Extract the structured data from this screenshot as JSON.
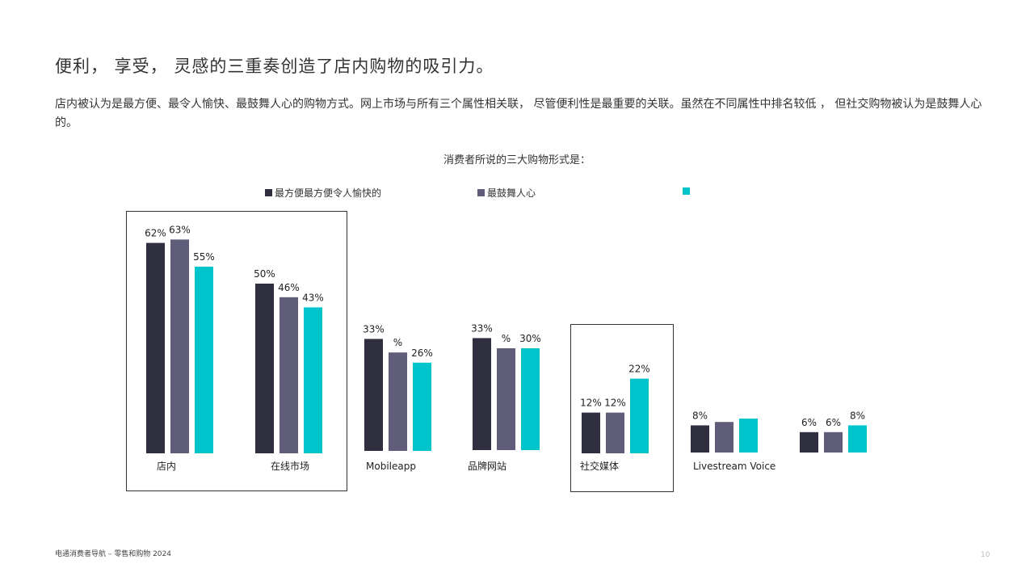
{
  "header": {
    "title": "便利， 享受， 灵感的三重奏创造了店内购物的吸引力。",
    "description": "店内被认为是最方便、最令人愉快、最鼓舞人心的购物方式。网上市场与所有三个属性相关联， 尽管便利性是最重要的关联。虽然在不同属性中排名较低 ， 但社交购物被认为是鼓舞人心的。"
  },
  "footer": {
    "source": "电通消费者导航 – 零售和购物 2024",
    "page_number": "10"
  },
  "colors": {
    "series_1": "#2f2f3f",
    "series_2": "#5f5d7a",
    "series_3": "#00c4cc",
    "box_border": "#333333"
  },
  "chart_data": {
    "type": "bar",
    "title": "消费者所说的三大购物形式是：",
    "categories": [
      "店内",
      "在线市场",
      "Mobileapp",
      "品牌网站",
      "社交媒体",
      "Livestream Voice",
      ""
    ],
    "series": [
      {
        "name": "最方便最方便令人愉快的",
        "values": [
          62,
          50,
          33,
          33,
          12,
          8,
          6
        ]
      },
      {
        "name": "最鼓舞人心",
        "values": [
          63,
          46,
          29,
          30,
          12,
          9,
          6
        ]
      },
      {
        "name": "",
        "values": [
          55,
          43,
          26,
          30,
          22,
          10,
          8
        ]
      }
    ],
    "data_labels": [
      [
        "62%",
        "50%",
        "33%",
        "33%",
        "12%",
        "8%",
        "6%"
      ],
      [
        "63%",
        "46%",
        "%",
        "%",
        "12%",
        "",
        "6%"
      ],
      [
        "55%",
        "43%",
        "26%",
        "30%",
        "22%",
        "",
        "8%"
      ]
    ],
    "highlighted_categories": [
      "店内",
      "在线市场",
      "社交媒体"
    ],
    "ylim": [
      0,
      70
    ],
    "grid": false,
    "legend_position": "top"
  }
}
